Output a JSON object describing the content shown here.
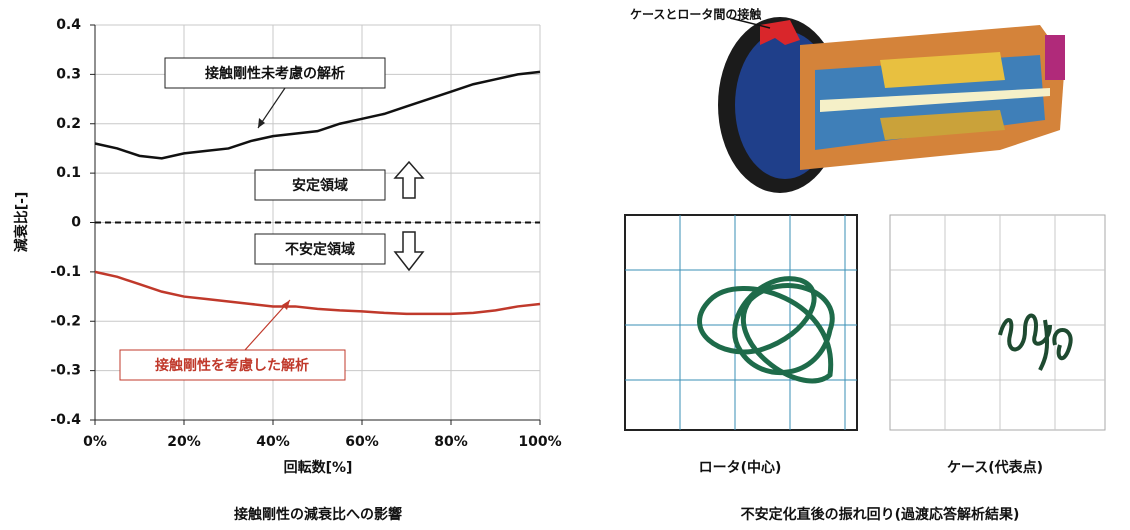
{
  "chart_data": {
    "type": "line",
    "x": [
      0,
      5,
      10,
      15,
      20,
      25,
      30,
      35,
      40,
      45,
      50,
      55,
      60,
      65,
      70,
      75,
      80,
      85,
      90,
      95,
      100
    ],
    "series": [
      {
        "name": "接触剛性未考慮の解析",
        "color": "#111111",
        "values": [
          0.16,
          0.15,
          0.135,
          0.13,
          0.14,
          0.145,
          0.15,
          0.165,
          0.175,
          0.18,
          0.185,
          0.2,
          0.21,
          0.22,
          0.235,
          0.25,
          0.265,
          0.28,
          0.29,
          0.3,
          0.305
        ]
      },
      {
        "name": "接触剛性を考慮した解析",
        "color": "#c0392b",
        "values": [
          -0.1,
          -0.11,
          -0.125,
          -0.14,
          -0.15,
          -0.155,
          -0.16,
          -0.165,
          -0.17,
          -0.17,
          -0.175,
          -0.178,
          -0.18,
          -0.183,
          -0.185,
          -0.185,
          -0.185,
          -0.183,
          -0.178,
          -0.17,
          -0.165
        ]
      }
    ],
    "xlim": [
      0,
      100
    ],
    "xticks": [
      {
        "value": 0,
        "label": "0%"
      },
      {
        "value": 20,
        "label": "20%"
      },
      {
        "value": 40,
        "label": "40%"
      },
      {
        "value": 60,
        "label": "60%"
      },
      {
        "value": 80,
        "label": "80%"
      },
      {
        "value": 100,
        "label": "100%"
      }
    ],
    "ylim": [
      -0.4,
      0.4
    ],
    "yticks": [
      -0.4,
      -0.3,
      -0.2,
      -0.1,
      0,
      0.1,
      0.2,
      0.3,
      0.4
    ],
    "grid": true,
    "zero_line": true,
    "xlabel": "回転数[%]",
    "ylabel": "減衰比[-]",
    "annotations": {
      "stable": "安定領域",
      "unstable": "不安定領域"
    },
    "caption": "接触剛性の減衰比への影響"
  },
  "figure": {
    "contact_label": "ケースとロータ間の接触",
    "rotor_label": "ロータ(中心)",
    "case_label": "ケース(代表点)",
    "caption": "不安定化直後の振れ回り(過渡応答解析結果)"
  }
}
